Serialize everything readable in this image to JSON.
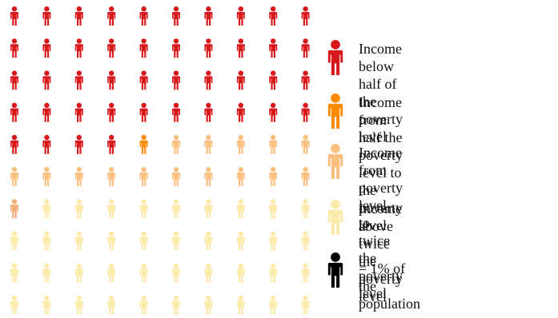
{
  "chart_data": {
    "type": "pictogram",
    "grid": {
      "rows": 10,
      "columns": 10
    },
    "unit": "= 1% of the population",
    "series": [
      {
        "name": "Income below half of\nthe poverty level",
        "value": 44,
        "color": "#d7191c"
      },
      {
        "name": "Income from half the poverty\nlevel to the poverty level",
        "value": 1,
        "color": "#ff8c00"
      },
      {
        "name": "Income from poverty level\nto twice the poverty level",
        "value": 16,
        "color": "#fbbf80"
      },
      {
        "name": "Income above twice the\npoverty level",
        "value": 39,
        "color": "#fde9a8"
      }
    ],
    "special_cells": [
      {
        "index": 60,
        "color": "#f5ab78"
      }
    ],
    "scale_icon_color": "#000000"
  }
}
